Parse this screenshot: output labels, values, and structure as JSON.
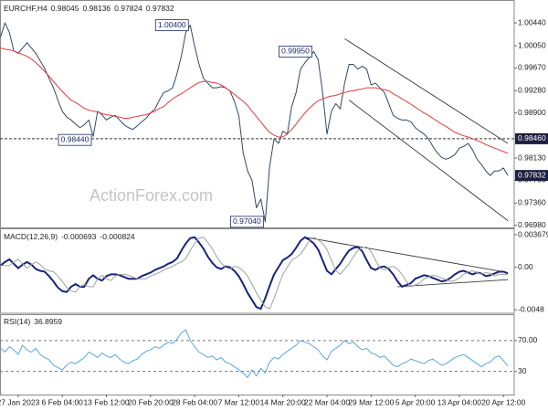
{
  "chart_data": [
    {
      "type": "line",
      "title": "EURCHF,H4",
      "ohlc": [
        0.98045,
        0.98136,
        0.97824,
        0.97832
      ],
      "watermark": "ActionForex.com",
      "ylim": [
        0.9696,
        1.008
      ],
      "yticks": [
        {
          "value": 1.0044,
          "label": "1.00440"
        },
        {
          "value": 1.0005,
          "label": "1.00050"
        },
        {
          "value": 0.9967,
          "label": "0.99670"
        },
        {
          "value": 0.9928,
          "label": "0.99280"
        },
        {
          "value": 0.989,
          "label": "0.98900"
        },
        {
          "value": 0.9813,
          "label": "0.98130"
        },
        {
          "value": 0.9775,
          "label": "0.97750"
        },
        {
          "value": 0.9736,
          "label": "0.97360"
        },
        {
          "value": 0.9698,
          "label": "0.96980"
        }
      ],
      "grid": false,
      "hline": {
        "value": 0.9846,
        "label": "0.98460"
      },
      "last_value_label": true,
      "series": [
        {
          "color": "#2f4a68",
          "width": 1,
          "values": [
            1.002,
            1.0044,
            1.0028,
            0.9996,
            0.9992,
            1.0001,
            1.001,
            1.0001,
            0.9992,
            0.9979,
            0.9966,
            0.9949,
            0.9933,
            0.9912,
            0.9893,
            0.9883,
            0.9878,
            0.9871,
            0.9865,
            0.987,
            0.9878,
            0.985,
            0.9893,
            0.9887,
            0.9878,
            0.9883,
            0.9886,
            0.9878,
            0.987,
            0.9865,
            0.9862,
            0.9868,
            0.9875,
            0.9881,
            0.989,
            0.9897,
            0.9912,
            0.9925,
            0.9928,
            0.9933,
            0.9957,
            0.9988,
            1.0028,
            1.004,
            1.0004,
            0.9973,
            0.9949,
            0.9941,
            0.9933,
            0.9933,
            0.9935,
            0.9933,
            0.9928,
            0.991,
            0.9886,
            0.9822,
            0.9791,
            0.9775,
            0.9728,
            0.9743,
            0.9704,
            0.9799,
            0.9846,
            0.9838,
            0.9859,
            0.9854,
            0.9901,
            0.9925,
            0.9965,
            0.9976,
            0.9985,
            0.9995,
            0.9981,
            0.9925,
            0.9854,
            0.9893,
            0.9906,
            0.9897,
            0.9941,
            0.9973,
            0.9973,
            0.9965,
            0.997,
            0.9965,
            0.9938,
            0.9941,
            0.9933,
            0.9925,
            0.9906,
            0.9886,
            0.9881,
            0.9878,
            0.9878,
            0.9875,
            0.9865,
            0.9859,
            0.9854,
            0.9846,
            0.9833,
            0.9822,
            0.9814,
            0.9811,
            0.9814,
            0.9819,
            0.983,
            0.9833,
            0.9838,
            0.9827,
            0.9811,
            0.9802,
            0.9791,
            0.9783,
            0.9791,
            0.9791,
            0.9796,
            0.97832
          ]
        },
        {
          "color": "#e8383a",
          "width": 1,
          "values": [
            1.0001,
            0.9999,
            0.9998,
            0.9996,
            0.9993,
            0.999,
            0.9987,
            0.9982,
            0.9976,
            0.9969,
            0.9961,
            0.9953,
            0.9944,
            0.9935,
            0.9927,
            0.9919,
            0.9912,
            0.9908,
            0.9903,
            0.9898,
            0.9895,
            0.9893,
            0.9892,
            0.9889,
            0.9887,
            0.9886,
            0.9884,
            0.9883,
            0.9881,
            0.9881,
            0.9883,
            0.9884,
            0.9886,
            0.9887,
            0.989,
            0.9893,
            0.9898,
            0.9901,
            0.9908,
            0.9914,
            0.9919,
            0.9923,
            0.9928,
            0.9933,
            0.9938,
            0.9942,
            0.9944,
            0.9944,
            0.9942,
            0.9941,
            0.9938,
            0.9933,
            0.9928,
            0.9922,
            0.9916,
            0.991,
            0.9903,
            0.9893,
            0.9884,
            0.9875,
            0.9865,
            0.9857,
            0.9852,
            0.9849,
            0.9849,
            0.9854,
            0.9862,
            0.9871,
            0.9881,
            0.989,
            0.9898,
            0.9905,
            0.9911,
            0.9914,
            0.9917,
            0.9919,
            0.992,
            0.9923,
            0.9925,
            0.9927,
            0.9928,
            0.993,
            0.9931,
            0.9933,
            0.9933,
            0.9933,
            0.9931,
            0.993,
            0.9928,
            0.9923,
            0.9919,
            0.9914,
            0.991,
            0.9905,
            0.99,
            0.9895,
            0.989,
            0.9886,
            0.9881,
            0.9876,
            0.9871,
            0.9867,
            0.9862,
            0.9857,
            0.9854,
            0.9851,
            0.9849,
            0.9846,
            0.9843,
            0.984,
            0.9836,
            0.9833,
            0.983,
            0.9827,
            0.9824,
            0.9821
          ]
        }
      ],
      "trendlines": [
        {
          "x": [
            78,
            115
          ],
          "y": [
            1.0017,
            0.9838
          ]
        },
        {
          "x": [
            79,
            115
          ],
          "y": [
            0.9912,
            0.9706
          ]
        }
      ],
      "annotations": [
        {
          "x": 43,
          "value": 1.004,
          "label": "1.00400"
        },
        {
          "x": 71,
          "value": 0.9995,
          "label": "0.99950"
        },
        {
          "x": 21,
          "value": 0.9844,
          "label": "0.98440"
        },
        {
          "x": 60,
          "value": 0.9704,
          "label": "0.97040"
        }
      ]
    },
    {
      "type": "line",
      "title": "MACD(12,26,9)",
      "ylim": [
        -0.0051,
        0.0042
      ],
      "yticks": [
        0.003679,
        {
          "value": 0,
          "label": "0.00"
        },
        -0.0048
      ],
      "grid": false,
      "series": [
        {
          "color": "#1a237e",
          "width": 2,
          "values": [
            0.0002,
            0.0006,
            0.0009,
            0.0004,
            -0.0001,
            0.0003,
            0.0006,
            0.0003,
            -0.0002,
            -0.0004,
            -0.0005,
            -0.001,
            -0.0016,
            -0.0023,
            -0.0027,
            -0.0028,
            -0.0022,
            -0.0019,
            -0.0022,
            -0.0022,
            -0.0013,
            -0.0009,
            -0.0013,
            -0.0015,
            -0.001,
            -0.0008,
            -0.0008,
            -0.0009,
            -0.0011,
            -0.0013,
            -0.0013,
            -0.0013,
            -0.001,
            -0.0008,
            -0.0006,
            -0.0003,
            -0.0001,
            0.0001,
            0.0004,
            0.0006,
            0.001,
            0.0019,
            0.0027,
            0.0033,
            0.0034,
            0.0028,
            0.0021,
            0.0012,
            0.0005,
            0,
            -0.0002,
            0.0001,
            0,
            -0.0004,
            -0.001,
            -0.0019,
            -0.0029,
            -0.0037,
            -0.0045,
            -0.0047,
            -0.0035,
            -0.0021,
            -0.0008,
            0,
            0.0008,
            0.0011,
            0.0015,
            0.0022,
            0.003,
            0.0034,
            0.0031,
            0.0027,
            0.002,
            0.0008,
            -0.0004,
            -0.0008,
            -0.0002,
            0.0004,
            0.0012,
            0.0019,
            0.0022,
            0.0023,
            0.0018,
            0.0008,
            -0.0001,
            -0.0003,
            0,
            0.0001,
            -0.0002,
            -0.0008,
            -0.0016,
            -0.0022,
            -0.002,
            -0.0018,
            -0.0013,
            -0.0011,
            -0.0009,
            -0.001,
            -0.0012,
            -0.0014,
            -0.0016,
            -0.0015,
            -0.0012,
            -0.0008,
            -0.0005,
            -0.0004,
            -0.0006,
            -0.0008,
            -0.0006,
            -0.0007,
            -0.001,
            -0.0009,
            -0.0007,
            -0.0005,
            -0.0005,
            -0.000693
          ]
        },
        {
          "color": "#a0a0a0",
          "width": 1,
          "values": [
            0.0002,
            0.0002,
            0.0002,
            0.0006,
            0.0009,
            0.0004,
            -0.0001,
            0.0003,
            0.0006,
            0.0003,
            -0.0002,
            -0.0004,
            -0.0005,
            -0.001,
            -0.0016,
            -0.0023,
            -0.0027,
            -0.0028,
            -0.0022,
            -0.0019,
            -0.0022,
            -0.0022,
            -0.0013,
            -0.0009,
            -0.0013,
            -0.0015,
            -0.001,
            -0.0008,
            -0.0008,
            -0.0009,
            -0.0011,
            -0.0013,
            -0.0013,
            -0.0013,
            -0.001,
            -0.0008,
            -0.0006,
            -0.0003,
            -0.0001,
            0.0001,
            0.0004,
            0.0006,
            0.001,
            0.0019,
            0.0027,
            0.0033,
            0.0034,
            0.0028,
            0.0021,
            0.0012,
            0.0005,
            0,
            -0.0002,
            0.0001,
            0,
            -0.0004,
            -0.001,
            -0.0019,
            -0.0029,
            -0.0037,
            -0.0045,
            -0.0047,
            -0.0035,
            -0.0021,
            -0.0008,
            0,
            0.0008,
            0.0011,
            0.0015,
            0.0022,
            0.003,
            0.0034,
            0.0031,
            0.0027,
            0.002,
            0.0008,
            -0.0004,
            -0.0008,
            -0.0002,
            0.0004,
            0.0012,
            0.0019,
            0.0022,
            0.0023,
            0.0018,
            0.0008,
            -0.0001,
            -0.0003,
            0,
            0.0001,
            -0.0002,
            -0.0008,
            -0.0016,
            -0.0022,
            -0.002,
            -0.0018,
            -0.0013,
            -0.0011,
            -0.0009,
            -0.001,
            -0.0012,
            -0.0014,
            -0.0016,
            -0.0015,
            -0.0012,
            -0.0008,
            -0.0005,
            -0.0004,
            -0.0006,
            -0.0008,
            -0.0006,
            -0.0007,
            -0.001,
            -0.0008,
            -0.0008,
            -0.000824
          ]
        }
      ],
      "trendlines": [
        {
          "x": [
            69,
            115
          ],
          "y": [
            0.0034,
            -0.0006
          ]
        },
        {
          "x": [
            90,
            115
          ],
          "y": [
            -0.0022,
            -0.0014
          ]
        }
      ]
    },
    {
      "type": "line",
      "title": "RSI(14)",
      "ylim": [
        0,
        103
      ],
      "yticks": [
        {
          "value": 70,
          "label": "70.00"
        },
        30
      ],
      "grid": true,
      "series": [
        {
          "color": "#5aa6e0",
          "width": 1,
          "values": [
            60,
            55,
            62,
            58,
            52,
            64,
            58,
            55,
            60,
            52,
            48,
            45,
            38,
            35,
            32,
            38,
            42,
            40,
            44,
            48,
            55,
            52,
            48,
            54,
            50,
            48,
            52,
            46,
            42,
            40,
            44,
            46,
            52,
            56,
            58,
            62,
            60,
            64,
            68,
            66,
            72,
            80,
            84,
            70,
            62,
            55,
            52,
            48,
            50,
            45,
            48,
            42,
            40,
            36,
            32,
            28,
            22,
            32,
            24,
            34,
            28,
            42,
            48,
            46,
            52,
            56,
            60,
            64,
            70,
            68,
            66,
            62,
            58,
            50,
            45,
            56,
            60,
            64,
            70,
            66,
            68,
            62,
            58,
            60,
            54,
            52,
            48,
            50,
            44,
            38,
            36,
            40,
            42,
            46,
            44,
            42,
            40,
            44,
            46,
            42,
            38,
            40,
            44,
            48,
            50,
            52,
            48,
            44,
            40,
            36,
            40,
            42,
            48,
            50,
            44,
            36.8959
          ]
        }
      ],
      "categories": [
        null,
        null,
        null,
        null,
        "27 Jan 2023",
        null,
        null,
        null,
        null,
        null,
        null,
        null,
        null,
        null,
        "6 Feb 04:00",
        null,
        null,
        null,
        null,
        null,
        null,
        null,
        null,
        null,
        "13 Feb 12:00",
        null,
        null,
        null,
        null,
        null,
        null,
        null,
        null,
        null,
        "20 Feb 20:00",
        null,
        null,
        null,
        null,
        null,
        null,
        null,
        null,
        null,
        "28 Feb 04:00",
        null,
        null,
        null,
        null,
        null,
        null,
        null,
        null,
        null,
        "7 Mar 12:00",
        null,
        null,
        null,
        null,
        null,
        null,
        null,
        null,
        null,
        "14 Mar 20:00",
        null,
        null,
        null,
        null,
        null,
        null,
        null,
        null,
        null,
        "22 Mar 04:00",
        null,
        null,
        null,
        null,
        null,
        null,
        null,
        null,
        null,
        "29 Mar 12:00",
        null,
        null,
        null,
        null,
        null,
        null,
        null,
        null,
        null,
        "5 Apr 20:00",
        null,
        null,
        null,
        null,
        null,
        null,
        null,
        null,
        null,
        "13 Apr 04:00",
        null,
        null,
        null,
        null,
        null,
        null,
        null,
        null,
        null,
        "20 Apr 12:00",
        null
      ]
    }
  ]
}
